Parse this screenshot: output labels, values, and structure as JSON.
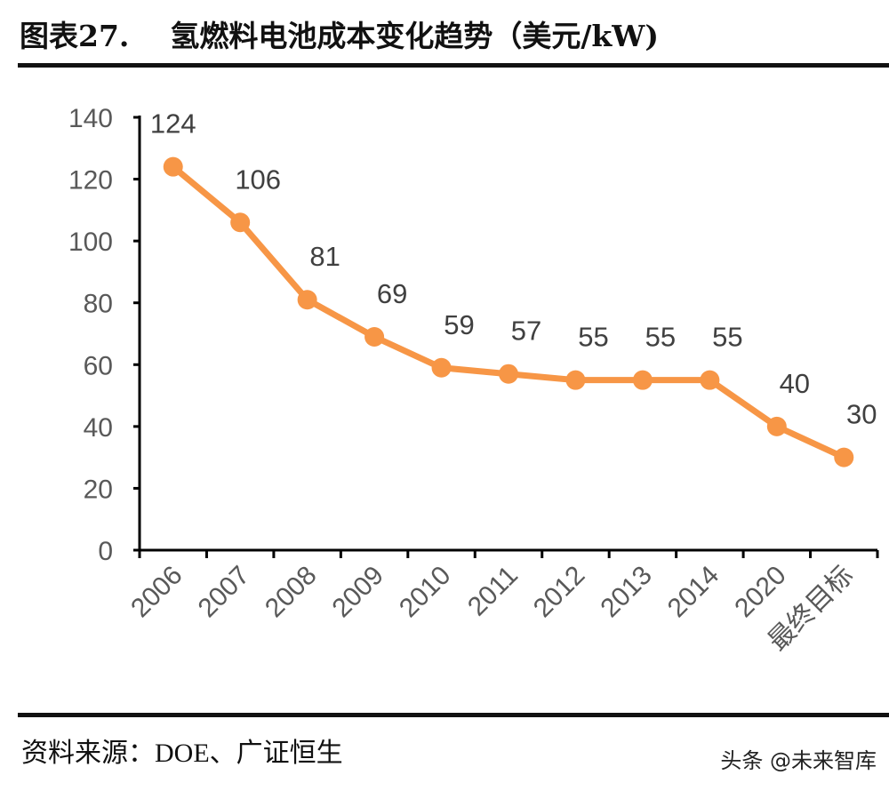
{
  "header": {
    "title": "图表27.    氢燃料电池成本变化趋势（美元/kW)"
  },
  "footer": {
    "source": "资料来源：DOE、广证恒生",
    "watermark": "头条 @未来智库"
  },
  "chart_data": {
    "type": "line",
    "title": "氢燃料电池成本变化趋势（美元/kW)",
    "categories": [
      "2006",
      "2007",
      "2008",
      "2009",
      "2010",
      "2011",
      "2012",
      "2013",
      "2014",
      "2020",
      "最终目标"
    ],
    "values": [
      124,
      106,
      81,
      69,
      59,
      57,
      55,
      55,
      55,
      40,
      30
    ],
    "ylim": [
      0,
      140
    ],
    "yticks": [
      0,
      20,
      40,
      60,
      80,
      100,
      120,
      140
    ],
    "grid": false,
    "legend": "none",
    "data_labels": true,
    "colors": {
      "line": "#F79646",
      "axis": "#000000",
      "text": "#595959"
    }
  }
}
